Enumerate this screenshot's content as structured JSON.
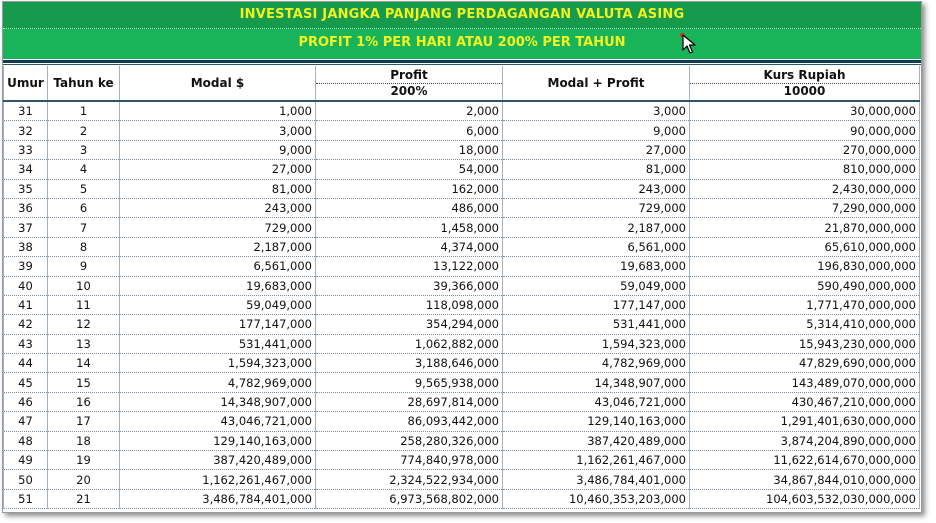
{
  "banner": {
    "title": "INVESTASI JANGKA PANJANG PERDAGANGAN VALUTA ASING",
    "subtitle": "PROFIT 1% PER HARI ATAU 200% PER TAHUN"
  },
  "headers": {
    "umur": "Umur",
    "tahun": "Tahun ke",
    "modal": "Modal $",
    "profit": "Profit",
    "profit_rate": "200%",
    "modal_profit": "Modal + Profit",
    "kurs": "Kurs Rupiah",
    "kurs_rate": "10000"
  },
  "rows": [
    {
      "umur": "31",
      "tahun": "1",
      "modal": "1,000",
      "profit": "2,000",
      "total": "3,000",
      "rupiah": "30,000,000"
    },
    {
      "umur": "32",
      "tahun": "2",
      "modal": "3,000",
      "profit": "6,000",
      "total": "9,000",
      "rupiah": "90,000,000"
    },
    {
      "umur": "33",
      "tahun": "3",
      "modal": "9,000",
      "profit": "18,000",
      "total": "27,000",
      "rupiah": "270,000,000"
    },
    {
      "umur": "34",
      "tahun": "4",
      "modal": "27,000",
      "profit": "54,000",
      "total": "81,000",
      "rupiah": "810,000,000"
    },
    {
      "umur": "35",
      "tahun": "5",
      "modal": "81,000",
      "profit": "162,000",
      "total": "243,000",
      "rupiah": "2,430,000,000"
    },
    {
      "umur": "36",
      "tahun": "6",
      "modal": "243,000",
      "profit": "486,000",
      "total": "729,000",
      "rupiah": "7,290,000,000"
    },
    {
      "umur": "37",
      "tahun": "7",
      "modal": "729,000",
      "profit": "1,458,000",
      "total": "2,187,000",
      "rupiah": "21,870,000,000"
    },
    {
      "umur": "38",
      "tahun": "8",
      "modal": "2,187,000",
      "profit": "4,374,000",
      "total": "6,561,000",
      "rupiah": "65,610,000,000"
    },
    {
      "umur": "39",
      "tahun": "9",
      "modal": "6,561,000",
      "profit": "13,122,000",
      "total": "19,683,000",
      "rupiah": "196,830,000,000"
    },
    {
      "umur": "40",
      "tahun": "10",
      "modal": "19,683,000",
      "profit": "39,366,000",
      "total": "59,049,000",
      "rupiah": "590,490,000,000"
    },
    {
      "umur": "41",
      "tahun": "11",
      "modal": "59,049,000",
      "profit": "118,098,000",
      "total": "177,147,000",
      "rupiah": "1,771,470,000,000"
    },
    {
      "umur": "42",
      "tahun": "12",
      "modal": "177,147,000",
      "profit": "354,294,000",
      "total": "531,441,000",
      "rupiah": "5,314,410,000,000"
    },
    {
      "umur": "43",
      "tahun": "13",
      "modal": "531,441,000",
      "profit": "1,062,882,000",
      "total": "1,594,323,000",
      "rupiah": "15,943,230,000,000"
    },
    {
      "umur": "44",
      "tahun": "14",
      "modal": "1,594,323,000",
      "profit": "3,188,646,000",
      "total": "4,782,969,000",
      "rupiah": "47,829,690,000,000"
    },
    {
      "umur": "45",
      "tahun": "15",
      "modal": "4,782,969,000",
      "profit": "9,565,938,000",
      "total": "14,348,907,000",
      "rupiah": "143,489,070,000,000"
    },
    {
      "umur": "46",
      "tahun": "16",
      "modal": "14,348,907,000",
      "profit": "28,697,814,000",
      "total": "43,046,721,000",
      "rupiah": "430,467,210,000,000"
    },
    {
      "umur": "47",
      "tahun": "17",
      "modal": "43,046,721,000",
      "profit": "86,093,442,000",
      "total": "129,140,163,000",
      "rupiah": "1,291,401,630,000,000"
    },
    {
      "umur": "48",
      "tahun": "18",
      "modal": "129,140,163,000",
      "profit": "258,280,326,000",
      "total": "387,420,489,000",
      "rupiah": "3,874,204,890,000,000"
    },
    {
      "umur": "49",
      "tahun": "19",
      "modal": "387,420,489,000",
      "profit": "774,840,978,000",
      "total": "1,162,261,467,000",
      "rupiah": "11,622,614,670,000,000"
    },
    {
      "umur": "50",
      "tahun": "20",
      "modal": "1,162,261,467,000",
      "profit": "2,324,522,934,000",
      "total": "3,486,784,401,000",
      "rupiah": "34,867,844,010,000,000"
    },
    {
      "umur": "51",
      "tahun": "21",
      "modal": "3,486,784,401,000",
      "profit": "6,973,568,802,000",
      "total": "10,460,353,203,000",
      "rupiah": "104,603,532,030,000,000"
    }
  ],
  "colors": {
    "banner_dark": "#169a4b",
    "banner_light": "#19b45a",
    "banner_text": "#f2f21f",
    "rule": "#123a4f"
  },
  "icons": {
    "cursor": "mouse-pointer-icon"
  }
}
